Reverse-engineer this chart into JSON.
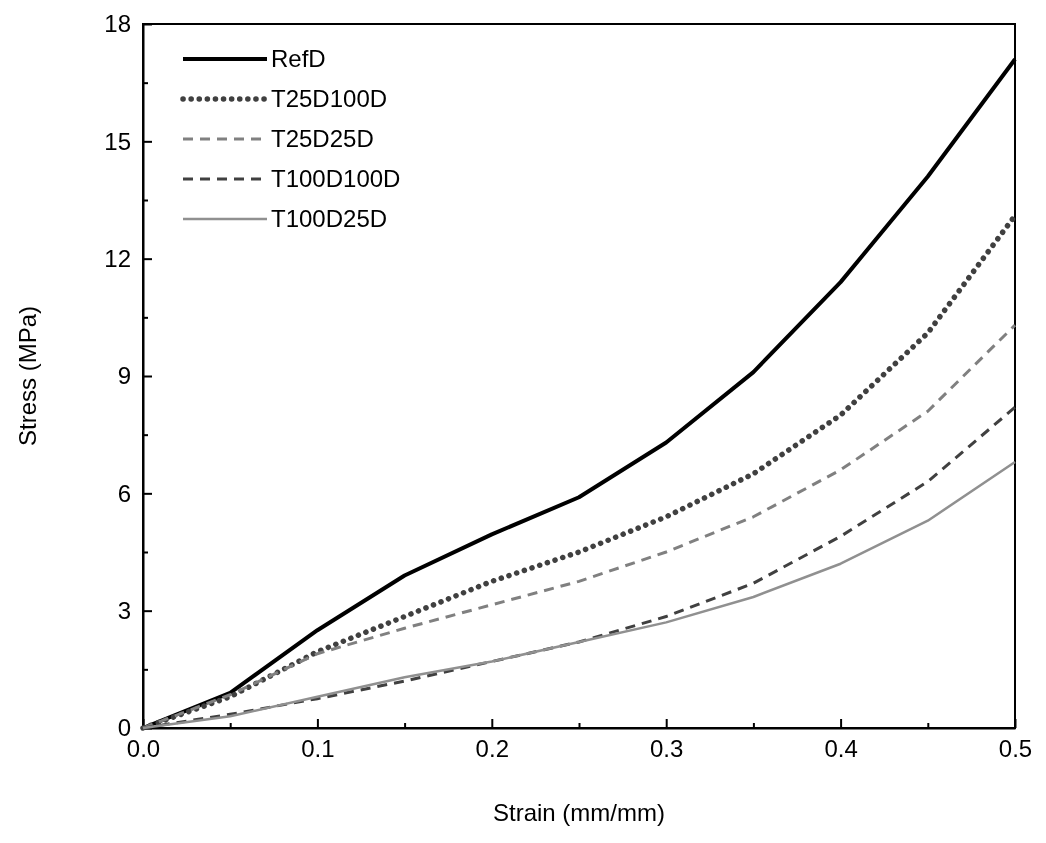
{
  "chart_data": {
    "type": "line",
    "xlabel": "Strain (mm/mm)",
    "ylabel": "Stress (MPa)",
    "x": [
      0,
      0.05,
      0.1,
      0.15,
      0.2,
      0.25,
      0.3,
      0.35,
      0.4,
      0.45,
      0.5
    ],
    "xlim": [
      0,
      0.5
    ],
    "xticks": [
      {
        "value": 0,
        "label": "0.0"
      },
      {
        "value": 0.05,
        "label": null
      },
      0.1,
      {
        "value": 0.15,
        "label": null
      },
      0.2,
      {
        "value": 0.25,
        "label": null
      },
      0.3,
      {
        "value": 0.35,
        "label": null
      },
      0.4,
      {
        "value": 0.45,
        "label": null
      },
      0.5
    ],
    "ylim": [
      0,
      18
    ],
    "yticks": [
      0,
      {
        "value": 1.5,
        "label": null
      },
      3,
      {
        "value": 4.5,
        "label": null
      },
      6,
      {
        "value": 7.5,
        "label": null
      },
      9,
      {
        "value": 10.5,
        "label": null
      },
      12,
      {
        "value": 13.5,
        "label": null
      },
      15,
      {
        "value": 16.5,
        "label": null
      },
      18
    ],
    "grid": false,
    "legend": "top left",
    "marker": "none",
    "series": [
      {
        "name": "RefD",
        "color": "#000000",
        "line_style": "solid",
        "values": [
          0,
          0.9,
          2.5,
          3.9,
          4.95,
          5.9,
          7.3,
          9.1,
          11.4,
          14.1,
          17.1
        ]
      },
      {
        "name": "T25D100D",
        "color": "#404040",
        "line_style": "dotted",
        "values": [
          0,
          0.8,
          1.95,
          2.85,
          3.75,
          4.5,
          5.4,
          6.5,
          8.0,
          10.1,
          13.1
        ]
      },
      {
        "name": "T25D25D",
        "color": "#808080",
        "line_style": "dashed",
        "values": [
          0,
          0.85,
          1.9,
          2.55,
          3.15,
          3.75,
          4.5,
          5.4,
          6.6,
          8.1,
          10.3
        ]
      },
      {
        "name": "T100D100D",
        "color": "#404040",
        "line_style": "dashed",
        "values": [
          0,
          0.35,
          0.75,
          1.2,
          1.7,
          2.2,
          2.85,
          3.7,
          4.9,
          6.3,
          8.2
        ]
      },
      {
        "name": "T100D25D",
        "color": "#909090",
        "line_style": "solid",
        "values": [
          0,
          0.3,
          0.8,
          1.3,
          1.7,
          2.2,
          2.7,
          3.35,
          4.2,
          5.3,
          6.8
        ]
      }
    ]
  }
}
